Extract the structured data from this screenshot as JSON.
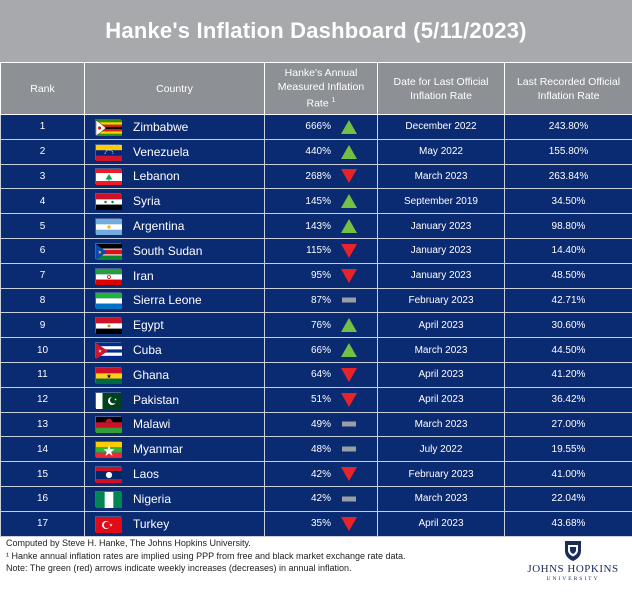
{
  "title": "Hanke's Inflation Dashboard (5/11/2023)",
  "headers": {
    "rank": "Rank",
    "country": "Country",
    "hanke_rate": "Hanke's Annual Measured Inflation Rate",
    "hanke_rate_sup": "1",
    "date_official": "Date for Last Official Inflation Rate",
    "last_official": "Last Recorded Official Inflation Rate"
  },
  "colors": {
    "up": "#74c044",
    "down": "#e8242b",
    "flat": "#9a9ea6",
    "row_bg": "#0a2a72",
    "header_bg": "#8d9094"
  },
  "rows": [
    {
      "rank": "1",
      "country": "Zimbabwe",
      "flag": "zimbabwe-flag-icon",
      "hanke": "666%",
      "trend": "up",
      "date": "December 2022",
      "official": "243.80%"
    },
    {
      "rank": "2",
      "country": "Venezuela",
      "flag": "venezuela-flag-icon",
      "hanke": "440%",
      "trend": "up",
      "date": "May 2022",
      "official": "155.80%"
    },
    {
      "rank": "3",
      "country": "Lebanon",
      "flag": "lebanon-flag-icon",
      "hanke": "268%",
      "trend": "down",
      "date": "March 2023",
      "official": "263.84%"
    },
    {
      "rank": "4",
      "country": "Syria",
      "flag": "syria-flag-icon",
      "hanke": "145%",
      "trend": "up",
      "date": "September 2019",
      "official": "34.50%"
    },
    {
      "rank": "5",
      "country": "Argentina",
      "flag": "argentina-flag-icon",
      "hanke": "143%",
      "trend": "up",
      "date": "January 2023",
      "official": "98.80%"
    },
    {
      "rank": "6",
      "country": "South Sudan",
      "flag": "south-sudan-flag-icon",
      "hanke": "115%",
      "trend": "down",
      "date": "January 2023",
      "official": "14.40%"
    },
    {
      "rank": "7",
      "country": "Iran",
      "flag": "iran-flag-icon",
      "hanke": "95%",
      "trend": "down",
      "date": "January 2023",
      "official": "48.50%"
    },
    {
      "rank": "8",
      "country": "Sierra Leone",
      "flag": "sierra-leone-flag-icon",
      "hanke": "87%",
      "trend": "flat",
      "date": "February 2023",
      "official": "42.71%"
    },
    {
      "rank": "9",
      "country": "Egypt",
      "flag": "egypt-flag-icon",
      "hanke": "76%",
      "trend": "up",
      "date": "April 2023",
      "official": "30.60%"
    },
    {
      "rank": "10",
      "country": "Cuba",
      "flag": "cuba-flag-icon",
      "hanke": "66%",
      "trend": "up",
      "date": "March 2023",
      "official": "44.50%"
    },
    {
      "rank": "11",
      "country": "Ghana",
      "flag": "ghana-flag-icon",
      "hanke": "64%",
      "trend": "down",
      "date": "April 2023",
      "official": "41.20%"
    },
    {
      "rank": "12",
      "country": "Pakistan",
      "flag": "pakistan-flag-icon",
      "hanke": "51%",
      "trend": "down",
      "date": "April 2023",
      "official": "36.42%"
    },
    {
      "rank": "13",
      "country": "Malawi",
      "flag": "malawi-flag-icon",
      "hanke": "49%",
      "trend": "flat",
      "date": "March 2023",
      "official": "27.00%"
    },
    {
      "rank": "14",
      "country": "Myanmar",
      "flag": "myanmar-flag-icon",
      "hanke": "48%",
      "trend": "flat",
      "date": "July 2022",
      "official": "19.55%"
    },
    {
      "rank": "15",
      "country": "Laos",
      "flag": "laos-flag-icon",
      "hanke": "42%",
      "trend": "down",
      "date": "February 2023",
      "official": "41.00%"
    },
    {
      "rank": "16",
      "country": "Nigeria",
      "flag": "nigeria-flag-icon",
      "hanke": "42%",
      "trend": "flat",
      "date": "March 2023",
      "official": "22.04%"
    },
    {
      "rank": "17",
      "country": "Turkey",
      "flag": "turkey-flag-icon",
      "hanke": "35%",
      "trend": "down",
      "date": "April 2023",
      "official": "43.68%"
    }
  ],
  "footer": {
    "line1": "Computed by Steve H. Hanke, The Johns Hopkins University.",
    "line2": "¹ Hanke annual inflation rates are implied using PPP from free and black market exchange rate data.",
    "line3": "Note: The green (red) arrows indicate weekly increases (decreases) in annual inflation."
  },
  "logo": {
    "line1": "JOHNS HOPKINS",
    "line2": "UNIVERSITY"
  }
}
